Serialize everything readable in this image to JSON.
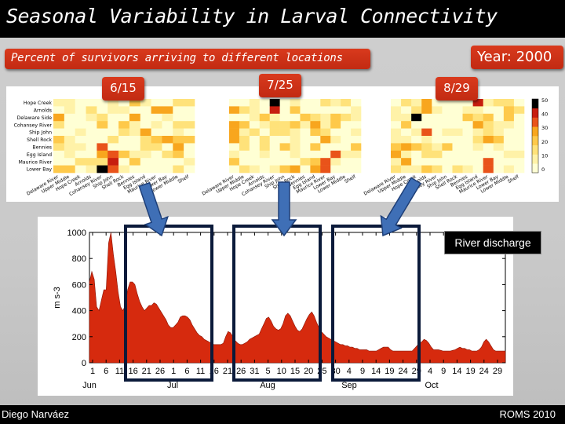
{
  "slide": {
    "title": "Seasonal Variability in Larval Connectivity",
    "subtitle": "Percent of survivors arriving to different locations",
    "year_label": "Year: 2000",
    "author": "Diego Narváez",
    "source": "ROMS 2010",
    "river_label": "River discharge",
    "date_tags": [
      "6/15",
      "7/25",
      "8/29"
    ]
  },
  "heatmaps": {
    "row_labels": [
      "Hope Creek",
      "Arnolds",
      "Delaware Side",
      "Cohansey River",
      "Ship John",
      "Shell Rock",
      "Bennies",
      "Egg Island",
      "Maurice River",
      "Lower Bay"
    ],
    "col_labels": [
      "Delaware River",
      "Upper Middle",
      "Hope Creek",
      "Arnolds",
      "Cohansey River",
      "Ship John",
      "Shell Rock",
      "Bennies",
      "Egg Island",
      "Maurice River",
      "Lower Bay",
      "Lower Middle",
      "Shelf"
    ],
    "colorbar_ticks": [
      "50",
      "40",
      "30",
      "20",
      "10",
      "0"
    ],
    "colors": {
      "low": "#ffffc8",
      "mid": "#f7a21b",
      "high": "#d91c0c",
      "max": "#000000"
    }
  },
  "chart_data": {
    "type": "area",
    "xlabel": "",
    "ylabel": "m s-3",
    "ylim": [
      0,
      1000
    ],
    "yticks": [
      0,
      200,
      400,
      600,
      800,
      1000
    ],
    "x_tick_labels": [
      "1",
      "6",
      "11",
      "16",
      "21",
      "26",
      "1",
      "6",
      "11",
      "16",
      "21",
      "26",
      "31",
      "5",
      "10",
      "15",
      "20",
      "25",
      "30",
      "4",
      "9",
      "14",
      "19",
      "24",
      "29",
      "4",
      "9",
      "14",
      "19",
      "24",
      "29"
    ],
    "month_labels": [
      "Jun",
      "Jul",
      "Aug",
      "Sep",
      "Oct"
    ],
    "series": [
      {
        "values": [
          620,
          700,
          640,
          430,
          400,
          480,
          560,
          560,
          920,
          1000,
          830,
          700,
          540,
          430,
          400,
          440,
          560,
          620,
          620,
          600,
          530,
          470,
          430,
          400,
          420,
          440,
          440,
          460,
          450,
          420,
          390,
          360,
          330,
          290,
          270,
          270,
          290,
          310,
          350,
          360,
          360,
          350,
          330,
          290,
          260,
          230,
          210,
          200,
          180,
          170,
          160,
          150,
          140,
          140,
          140,
          140,
          150,
          200,
          240,
          230,
          200,
          170,
          150,
          140,
          140,
          150,
          160,
          180,
          190,
          200,
          210,
          220,
          260,
          300,
          340,
          350,
          320,
          280,
          260,
          250,
          260,
          300,
          360,
          380,
          360,
          320,
          280,
          250,
          240,
          260,
          300,
          340,
          370,
          390,
          360,
          310,
          270,
          240,
          220,
          200,
          190,
          180,
          170,
          160,
          150,
          140,
          140,
          130,
          130,
          120,
          120,
          110,
          110,
          100,
          100,
          100,
          100,
          90,
          90,
          90,
          90,
          100,
          110,
          120,
          120,
          120,
          100,
          90,
          90,
          90,
          90,
          90,
          90,
          90,
          90,
          90,
          110,
          130,
          150,
          160,
          180,
          170,
          150,
          120,
          100,
          100,
          100,
          95,
          90,
          90,
          90,
          90,
          95,
          100,
          110,
          120,
          110,
          110,
          100,
          100,
          90,
          90,
          90,
          100,
          120,
          160,
          180,
          160,
          130,
          100,
          90,
          90,
          90,
          90,
          90
        ]
      }
    ]
  }
}
